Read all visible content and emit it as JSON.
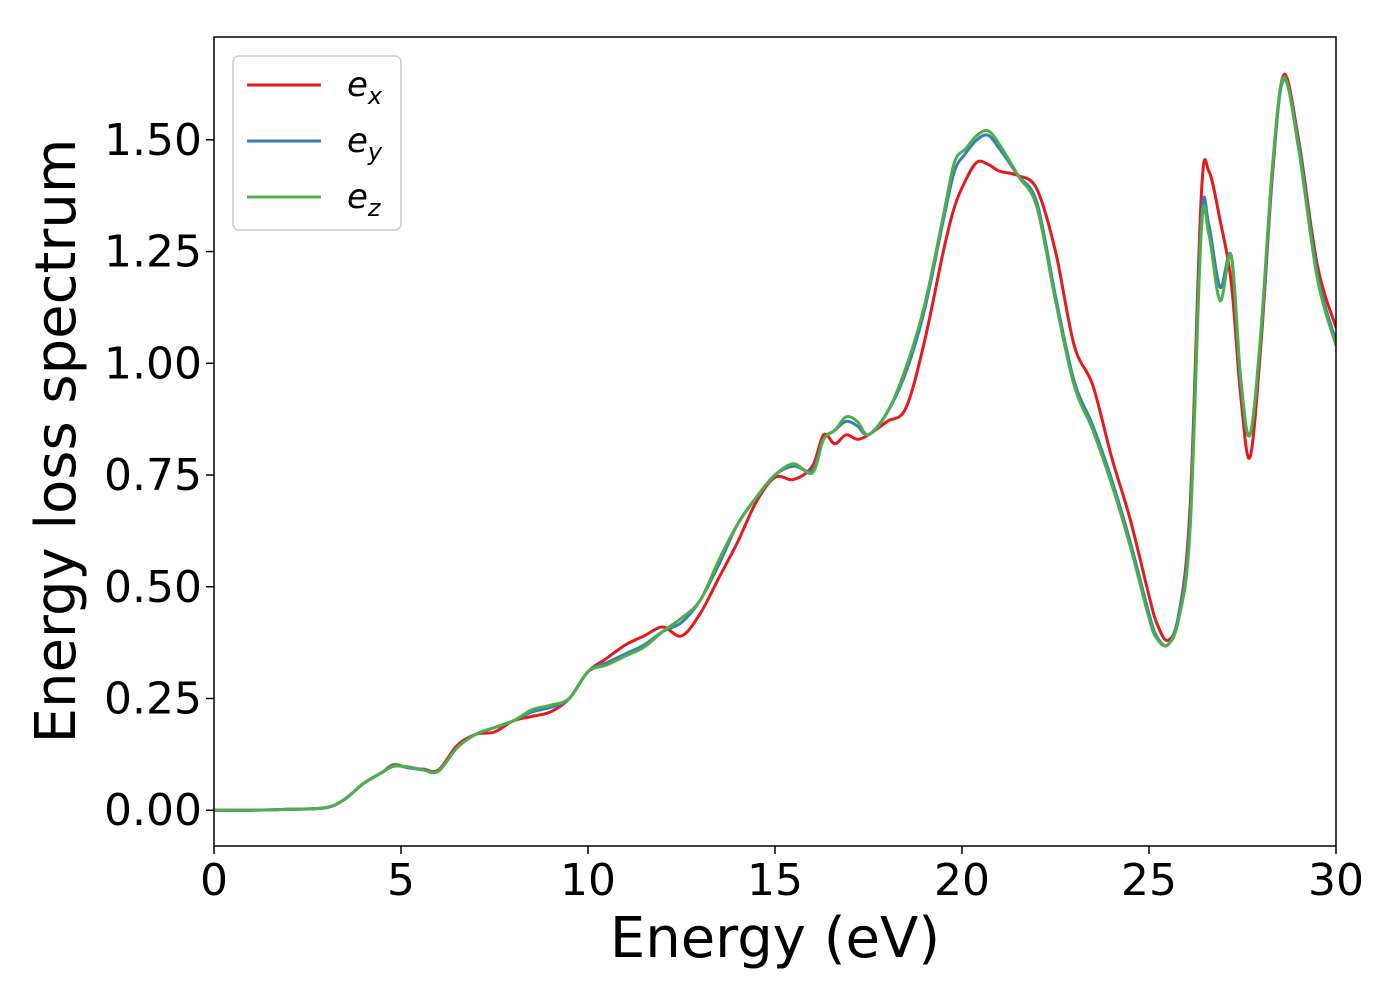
{
  "chart_data": {
    "type": "line",
    "title": "",
    "xlabel": "Energy (eV)",
    "ylabel": "Energy loss spectrum",
    "xlim": [
      0,
      30
    ],
    "ylim": [
      -0.08,
      1.73
    ],
    "xticks": [
      0,
      5,
      10,
      15,
      20,
      25,
      30
    ],
    "xtick_labels": [
      "0",
      "5",
      "10",
      "15",
      "20",
      "25",
      "30"
    ],
    "yticks": [
      0,
      0.25,
      0.5,
      0.75,
      1.0,
      1.25,
      1.5
    ],
    "ytick_labels": [
      "0.00",
      "0.25",
      "0.50",
      "0.75",
      "1.00",
      "1.25",
      "1.50"
    ],
    "grid": false,
    "legend_position": "top-left",
    "x": [
      0,
      1,
      2,
      3,
      3.5,
      4,
      4.5,
      4.8,
      5.2,
      5.6,
      6,
      6.5,
      7,
      7.5,
      8,
      8.5,
      9,
      9.5,
      10,
      10.5,
      11,
      11.5,
      12,
      12.5,
      13,
      13.5,
      14,
      14.5,
      15,
      15.5,
      16,
      16.3,
      16.6,
      16.9,
      17.2,
      17.5,
      18,
      18.5,
      19,
      19.5,
      19.8,
      20.1,
      20.4,
      20.7,
      21,
      21.5,
      22,
      22.5,
      23,
      23.5,
      24,
      24.5,
      25,
      25.2,
      25.5,
      25.8,
      26.1,
      26.4,
      26.6,
      26.9,
      27.2,
      27.45,
      27.7,
      28,
      28.3,
      28.6,
      29,
      29.5,
      30
    ],
    "series": [
      {
        "name": "e_x",
        "label_base": "e",
        "label_sub": "x",
        "color": "#e41a1c",
        "values": [
          0.0,
          0.0,
          0.002,
          0.006,
          0.025,
          0.06,
          0.085,
          0.102,
          0.095,
          0.092,
          0.09,
          0.145,
          0.17,
          0.175,
          0.2,
          0.21,
          0.22,
          0.25,
          0.31,
          0.34,
          0.37,
          0.39,
          0.41,
          0.39,
          0.44,
          0.52,
          0.6,
          0.69,
          0.745,
          0.74,
          0.77,
          0.84,
          0.82,
          0.84,
          0.83,
          0.84,
          0.87,
          0.9,
          1.05,
          1.25,
          1.35,
          1.41,
          1.45,
          1.445,
          1.43,
          1.42,
          1.39,
          1.25,
          1.04,
          0.95,
          0.79,
          0.65,
          0.48,
          0.42,
          0.38,
          0.44,
          0.68,
          1.38,
          1.43,
          1.32,
          1.18,
          0.93,
          0.79,
          1.05,
          1.42,
          1.645,
          1.5,
          1.22,
          1.08
        ]
      },
      {
        "name": "e_y",
        "label_base": "e",
        "label_sub": "y",
        "color": "#377eb8",
        "values": [
          0.0,
          0.0,
          0.002,
          0.006,
          0.025,
          0.06,
          0.085,
          0.1,
          0.095,
          0.09,
          0.088,
          0.14,
          0.17,
          0.185,
          0.2,
          0.22,
          0.23,
          0.25,
          0.31,
          0.33,
          0.35,
          0.37,
          0.4,
          0.42,
          0.47,
          0.55,
          0.64,
          0.7,
          0.75,
          0.77,
          0.76,
          0.83,
          0.85,
          0.87,
          0.86,
          0.84,
          0.89,
          0.98,
          1.12,
          1.32,
          1.43,
          1.47,
          1.5,
          1.51,
          1.48,
          1.42,
          1.36,
          1.15,
          0.96,
          0.86,
          0.74,
          0.6,
          0.44,
          0.39,
          0.37,
          0.44,
          0.65,
          1.32,
          1.31,
          1.17,
          1.24,
          0.96,
          0.84,
          1.07,
          1.43,
          1.635,
          1.49,
          1.2,
          1.05
        ]
      },
      {
        "name": "e_z",
        "label_base": "e",
        "label_sub": "z",
        "color": "#4daf4a",
        "values": [
          0.0,
          0.0,
          0.002,
          0.006,
          0.025,
          0.06,
          0.085,
          0.098,
          0.097,
          0.09,
          0.087,
          0.14,
          0.17,
          0.185,
          0.2,
          0.225,
          0.235,
          0.25,
          0.31,
          0.325,
          0.345,
          0.365,
          0.4,
          0.43,
          0.47,
          0.56,
          0.64,
          0.7,
          0.75,
          0.775,
          0.755,
          0.83,
          0.85,
          0.88,
          0.87,
          0.84,
          0.89,
          0.99,
          1.13,
          1.33,
          1.45,
          1.48,
          1.51,
          1.52,
          1.49,
          1.42,
          1.35,
          1.14,
          0.95,
          0.85,
          0.73,
          0.59,
          0.43,
          0.385,
          0.37,
          0.43,
          0.63,
          1.3,
          1.29,
          1.14,
          1.24,
          0.97,
          0.84,
          1.08,
          1.44,
          1.64,
          1.48,
          1.19,
          1.04
        ]
      }
    ]
  }
}
